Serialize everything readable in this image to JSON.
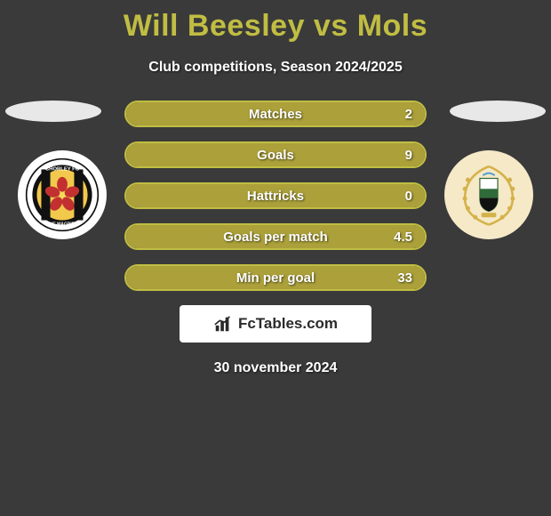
{
  "title": "Will Beesley vs Mols",
  "subtitle": "Club competitions, Season 2024/2025",
  "date": "30 november 2024",
  "logo_text": "FcTables.com",
  "colors": {
    "accent": "#aba03a",
    "accent_border": "#c0bd43",
    "title": "#c0bd43",
    "white": "#ffffff",
    "bg": "#3a3a3a"
  },
  "stats": [
    {
      "label": "Matches",
      "value": "2",
      "fill_pct": 100
    },
    {
      "label": "Goals",
      "value": "9",
      "fill_pct": 100
    },
    {
      "label": "Hattricks",
      "value": "0",
      "fill_pct": 100
    },
    {
      "label": "Goals per match",
      "value": "4.5",
      "fill_pct": 100
    },
    {
      "label": "Min per goal",
      "value": "33",
      "fill_pct": 100
    }
  ],
  "badges": {
    "left": {
      "name": "chorley-fc",
      "outer_ring": "#ffffff",
      "inner_bg": "#f2c94c",
      "stripe": "#111111",
      "rose": "#c23030"
    },
    "right": {
      "name": "club-crest",
      "wreath": "#d4b24a",
      "shield_bg": "#ffffff",
      "shield_mid": "#2f6b3a",
      "shield_bot": "#111111"
    }
  }
}
